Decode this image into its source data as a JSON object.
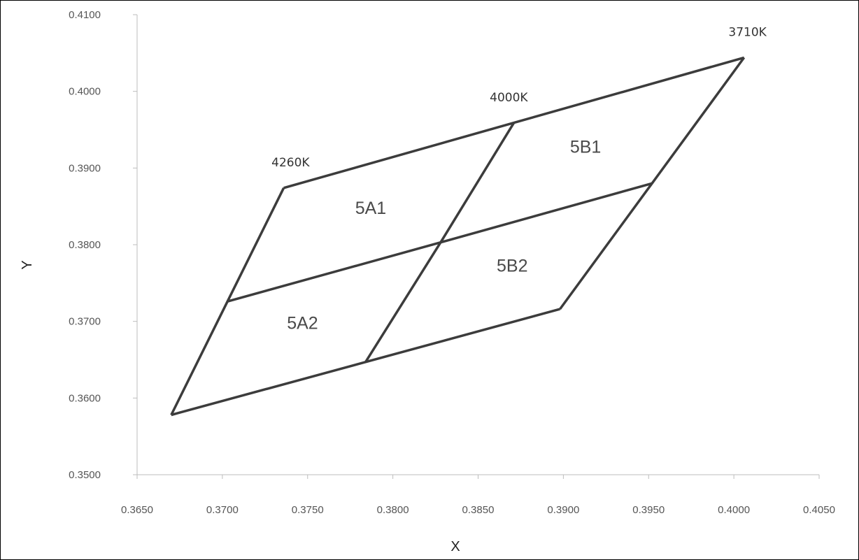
{
  "chart_data": {
    "type": "line",
    "xlabel": "X",
    "ylabel": "Y",
    "xlim": [
      0.365,
      0.405
    ],
    "ylim": [
      0.35,
      0.41
    ],
    "x_ticks": [
      "0.3650",
      "0.3700",
      "0.3750",
      "0.3800",
      "0.3850",
      "0.3900",
      "0.3950",
      "0.4000",
      "0.4050"
    ],
    "y_ticks": [
      "0.3500",
      "0.3600",
      "0.3700",
      "0.3800",
      "0.3900",
      "0.4000",
      "0.4100"
    ],
    "grid": false,
    "line_color": "#3c3c3c",
    "segments": [
      {
        "points": [
          [
            0.3736,
            0.3874
          ],
          [
            0.3871,
            0.3959
          ],
          [
            0.4006,
            0.4044
          ]
        ]
      },
      {
        "points": [
          [
            0.3703,
            0.3726
          ],
          [
            0.3828,
            0.3803
          ],
          [
            0.3952,
            0.388
          ]
        ]
      },
      {
        "points": [
          [
            0.367,
            0.3578
          ],
          [
            0.3784,
            0.3647
          ],
          [
            0.3898,
            0.3716
          ]
        ]
      },
      {
        "points": [
          [
            0.3736,
            0.3874
          ],
          [
            0.3703,
            0.3726
          ],
          [
            0.367,
            0.3578
          ]
        ]
      },
      {
        "points": [
          [
            0.3871,
            0.3959
          ],
          [
            0.3828,
            0.3803
          ],
          [
            0.3784,
            0.3647
          ]
        ]
      },
      {
        "points": [
          [
            0.4006,
            0.4044
          ],
          [
            0.3952,
            0.388
          ],
          [
            0.3898,
            0.3716
          ]
        ]
      }
    ],
    "regions": [
      {
        "label": "5A1",
        "x": 0.3787,
        "y": 0.384
      },
      {
        "label": "5B1",
        "x": 0.3913,
        "y": 0.392
      },
      {
        "label": "5A2",
        "x": 0.3747,
        "y": 0.369
      },
      {
        "label": "5B2",
        "x": 0.387,
        "y": 0.3765
      }
    ],
    "cct_labels": [
      {
        "label": "4260K",
        "x": 0.374,
        "y": 0.3902
      },
      {
        "label": "4000K",
        "x": 0.3868,
        "y": 0.3987
      },
      {
        "label": "3710K",
        "x": 0.4008,
        "y": 0.4072
      }
    ]
  }
}
